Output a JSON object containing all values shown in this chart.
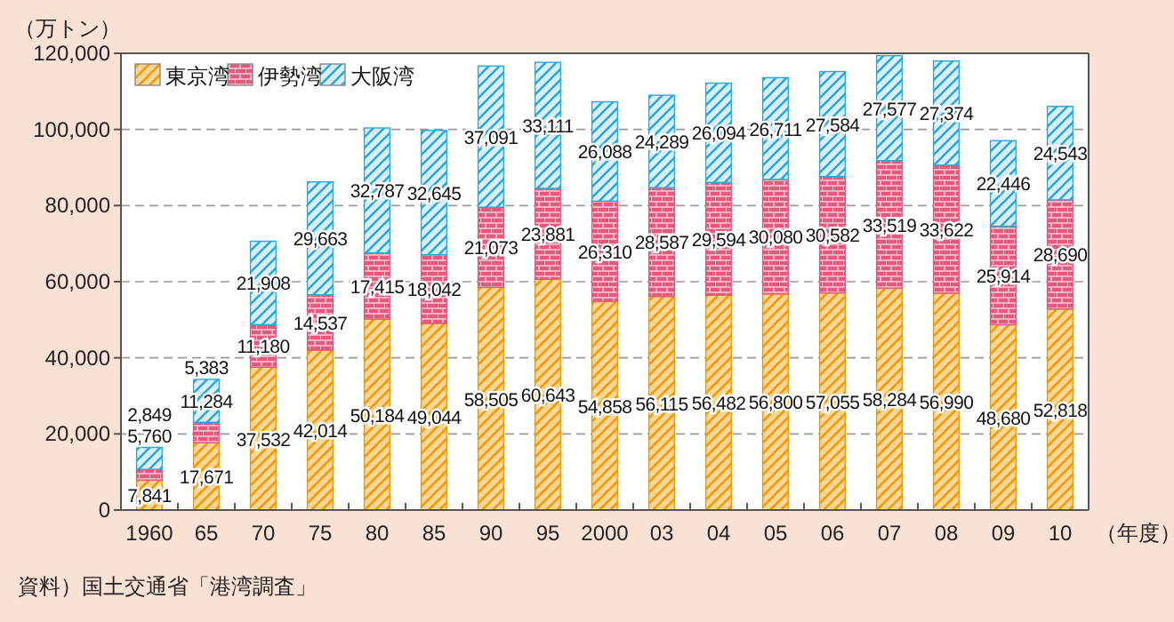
{
  "chart_data": {
    "type": "bar",
    "stacked": true,
    "ylabel": "（万トン）",
    "xlabel": "（年度）",
    "categories": [
      "1960",
      "65",
      "70",
      "75",
      "80",
      "85",
      "90",
      "95",
      "2000",
      "03",
      "04",
      "05",
      "06",
      "07",
      "08",
      "09",
      "10"
    ],
    "series": [
      {
        "name": "東京湾",
        "color": "#f39800",
        "values": [
          7841,
          17671,
          37532,
          42014,
          50184,
          49044,
          58505,
          60643,
          54858,
          56115,
          56482,
          56800,
          57055,
          58284,
          56990,
          48680,
          52818
        ],
        "value_labels": [
          "7,841",
          "17,671",
          "37,532",
          "42,014",
          "50,184",
          "49,044",
          "58,505",
          "60,643",
          "54,858",
          "56,115",
          "56,482",
          "56,800",
          "57,055",
          "58,284",
          "56,990",
          "48,680",
          "52,818"
        ]
      },
      {
        "name": "伊勢湾",
        "color": "#e8577c",
        "values": [
          2849,
          5383,
          11180,
          14537,
          17415,
          18042,
          21073,
          23881,
          26310,
          28587,
          29594,
          30080,
          30582,
          33519,
          33622,
          25914,
          28690
        ],
        "value_labels": [
          "2,849",
          "5,383",
          "11,180",
          "14,537",
          "17,415",
          "18,042",
          "21,073",
          "23,881",
          "26,310",
          "28,587",
          "29,594",
          "30,080",
          "30,582",
          "33,519",
          "33,622",
          "25,914",
          "28,690"
        ]
      },
      {
        "name": "大阪湾",
        "color": "#29a8e0",
        "values": [
          5760,
          11284,
          21908,
          29663,
          32787,
          32645,
          37091,
          33111,
          26088,
          24289,
          26094,
          26711,
          27584,
          27577,
          27374,
          22446,
          24543
        ],
        "value_labels": [
          "5,760",
          "11,284",
          "21,908",
          "29,663",
          "32,787",
          "32,645",
          "37,091",
          "33,111",
          "26,088",
          "24,289",
          "26,094",
          "26,711",
          "27,584",
          "27,577",
          "27,374",
          "22,446",
          "24,543"
        ]
      }
    ],
    "ylim": [
      0,
      120000
    ],
    "yticks": [
      0,
      {
        "value": 20000,
        "label": "20,000"
      },
      {
        "value": 40000,
        "label": "40,000"
      },
      {
        "value": 60000,
        "label": "60,000"
      },
      {
        "value": 80000,
        "label": "80,000"
      },
      {
        "value": 100000,
        "label": "100,000"
      },
      {
        "value": 120000,
        "label": "120,000"
      }
    ],
    "grid": "y",
    "legend": "top left",
    "annotations": [
      "資料）国土交通省「港湾調査」"
    ]
  }
}
